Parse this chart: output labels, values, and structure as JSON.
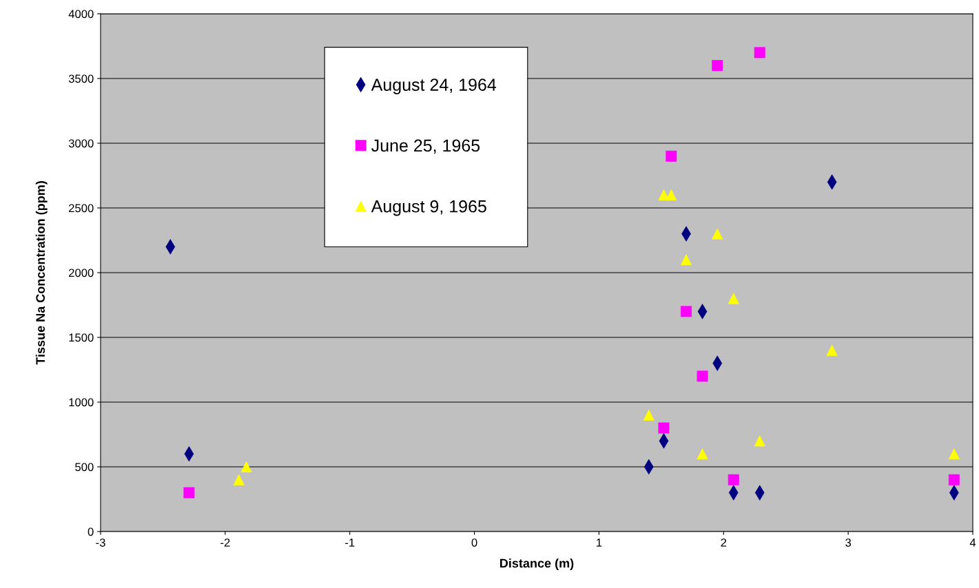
{
  "chart_data": {
    "type": "scatter",
    "xlabel": "Distance (m)",
    "ylabel": "Tissue Na Concentration (ppm)",
    "xlim": [
      -3,
      4
    ],
    "xticks": [
      -3,
      -2,
      -1,
      0,
      1,
      2,
      3,
      4
    ],
    "ylim": [
      0,
      4000
    ],
    "yticks": [
      0,
      500,
      1000,
      1500,
      2000,
      2500,
      3000,
      3500,
      4000
    ],
    "grid": "y",
    "legend": "top left",
    "series": [
      {
        "name": "August 24, 1964",
        "color": "#000080",
        "marker": "diamond",
        "x": [
          -2.44,
          -2.29,
          1.4,
          1.52,
          1.7,
          1.83,
          1.95,
          2.08,
          2.29,
          2.87,
          3.85
        ],
        "values": [
          2200,
          600,
          500,
          700,
          2300,
          1700,
          1300,
          300,
          300,
          2700,
          300
        ]
      },
      {
        "name": "June 25, 1965",
        "color": "#ff00ff",
        "marker": "square",
        "x": [
          -2.29,
          1.52,
          1.58,
          1.7,
          1.83,
          1.95,
          2.08,
          2.29,
          3.85
        ],
        "values": [
          300,
          800,
          2900,
          1700,
          1200,
          3600,
          400,
          3700,
          400
        ]
      },
      {
        "name": "August 9, 1965",
        "color": "#ffff00",
        "marker": "triangle",
        "x": [
          -1.89,
          -1.83,
          1.4,
          1.52,
          1.58,
          1.7,
          1.83,
          1.95,
          2.08,
          2.29,
          2.87,
          3.85
        ],
        "values": [
          400,
          500,
          900,
          2600,
          2600,
          2100,
          600,
          2300,
          1800,
          700,
          1400,
          600
        ]
      }
    ]
  }
}
